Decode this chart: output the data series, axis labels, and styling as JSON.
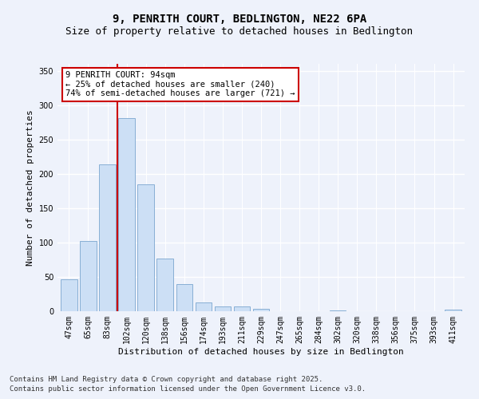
{
  "title1": "9, PENRITH COURT, BEDLINGTON, NE22 6PA",
  "title2": "Size of property relative to detached houses in Bedlington",
  "xlabel": "Distribution of detached houses by size in Bedlington",
  "ylabel": "Number of detached properties",
  "categories": [
    "47sqm",
    "65sqm",
    "83sqm",
    "102sqm",
    "120sqm",
    "138sqm",
    "156sqm",
    "174sqm",
    "193sqm",
    "211sqm",
    "229sqm",
    "247sqm",
    "265sqm",
    "284sqm",
    "302sqm",
    "320sqm",
    "338sqm",
    "356sqm",
    "375sqm",
    "393sqm",
    "411sqm"
  ],
  "values": [
    47,
    102,
    214,
    281,
    185,
    77,
    39,
    13,
    7,
    7,
    4,
    0,
    0,
    0,
    1,
    0,
    0,
    0,
    0,
    0,
    2
  ],
  "bar_color": "#ccdff5",
  "bar_edge_color": "#88afd4",
  "vline_color": "#cc0000",
  "annotation_text": "9 PENRITH COURT: 94sqm\n← 25% of detached houses are smaller (240)\n74% of semi-detached houses are larger (721) →",
  "annotation_box_color": "#ffffff",
  "annotation_box_edge": "#cc0000",
  "ylim": [
    0,
    360
  ],
  "yticks": [
    0,
    50,
    100,
    150,
    200,
    250,
    300,
    350
  ],
  "footer1": "Contains HM Land Registry data © Crown copyright and database right 2025.",
  "footer2": "Contains public sector information licensed under the Open Government Licence v3.0.",
  "bg_color": "#eef2fb",
  "grid_color": "#ffffff",
  "title_fontsize": 10,
  "subtitle_fontsize": 9,
  "label_fontsize": 8,
  "tick_fontsize": 7,
  "footer_fontsize": 6.5,
  "ann_fontsize": 7.5
}
